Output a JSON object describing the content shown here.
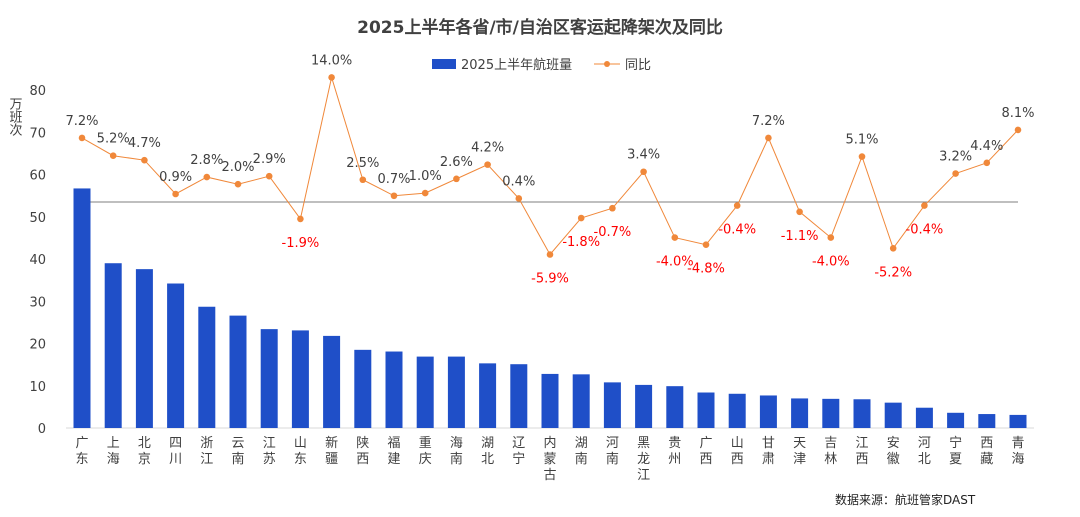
{
  "chart_data": {
    "type": "bar",
    "title": "2025上半年各省/市/自治区客运起降架次及同比",
    "ylabel": "万班次",
    "ylim": [
      0,
      80
    ],
    "yticks": [
      "0",
      "10",
      "20",
      "30",
      "40",
      "50",
      "60",
      "70",
      "80"
    ],
    "categories": [
      "广东",
      "上海",
      "北京",
      "四川",
      "浙江",
      "云南",
      "江苏",
      "山东",
      "新疆",
      "陕西",
      "福建",
      "重庆",
      "海南",
      "湖北",
      "辽宁",
      "内蒙古",
      "湖南",
      "河南",
      "黑龙江",
      "贵州",
      "广西",
      "山西",
      "甘肃",
      "天津",
      "吉林",
      "江西",
      "安徽",
      "河北",
      "宁夏",
      "西藏",
      "青海"
    ],
    "series": [
      {
        "name": "2025上半年航班量",
        "kind": "bar",
        "color": "#1f4fc8",
        "values": [
          56.7,
          39.0,
          37.6,
          34.2,
          28.7,
          26.6,
          23.4,
          23.1,
          21.8,
          18.5,
          18.1,
          16.9,
          16.9,
          15.3,
          15.1,
          12.8,
          12.7,
          10.8,
          10.2,
          9.9,
          8.4,
          8.1,
          7.7,
          7.0,
          6.9,
          6.8,
          6.0,
          4.8,
          3.6,
          3.3,
          3.1
        ]
      },
      {
        "name": "同比",
        "kind": "line",
        "color": "#f0883a",
        "values": [
          7.2,
          5.2,
          4.7,
          0.9,
          2.8,
          2.0,
          2.9,
          -1.9,
          14.0,
          2.5,
          0.7,
          1.0,
          2.6,
          4.2,
          0.4,
          -5.9,
          -1.8,
          -0.7,
          3.4,
          -4.0,
          -4.8,
          -0.4,
          7.2,
          -1.1,
          -4.0,
          5.1,
          -5.2,
          -0.4,
          3.2,
          4.4,
          8.1
        ],
        "labels": [
          "7.2%",
          "5.2%",
          "4.7%",
          "0.9%",
          "2.8%",
          "2.0%",
          "2.9%",
          "-1.9%",
          "14.0%",
          "2.5%",
          "0.7%",
          "1.0%",
          "2.6%",
          "4.2%",
          "0.4%",
          "-5.9%",
          "-1.8%",
          "-0.7%",
          "3.4%",
          "-4.0%",
          "-4.8%",
          "-0.4%",
          "7.2%",
          "-1.1%",
          "-4.0%",
          "5.1%",
          "-5.2%",
          "-0.4%",
          "3.2%",
          "4.4%",
          "8.1%"
        ],
        "positive_label_color": "#404040",
        "negative_label_color": "#ff0000"
      }
    ],
    "zero_reference_line": true,
    "grid": false,
    "legend_position": "top-center"
  },
  "footer": {
    "source": "数据来源：航班管家DAST"
  }
}
